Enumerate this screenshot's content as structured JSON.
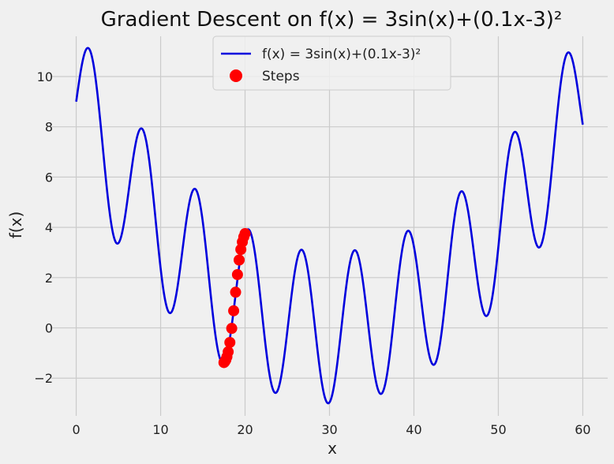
{
  "chart_data": {
    "type": "line",
    "title": "Gradient Descent on f(x) = 3sin(x)+(0.1x-3)²",
    "xlabel": "x",
    "ylabel": "f(x)",
    "xlim": [
      -2.95,
      62.95
    ],
    "ylim": [
      -3.5,
      11.6
    ],
    "xticks": [
      0,
      10,
      20,
      30,
      40,
      50,
      60
    ],
    "yticks": [
      -2,
      0,
      2,
      4,
      6,
      8,
      10
    ],
    "xtick_labels": [
      "0",
      "10",
      "20",
      "30",
      "40",
      "50",
      "60"
    ],
    "ytick_labels": [
      "−2",
      "0",
      "2",
      "4",
      "6",
      "8",
      "10"
    ],
    "grid": true,
    "legend_position": "upper-center",
    "series": [
      {
        "name": "f(x) = 3sin(x)+(0.1x-3)²",
        "type": "line",
        "color": "#0000dd",
        "function": "3sin(x)+(0.1x-3)^2",
        "x_range": [
          0,
          60
        ]
      },
      {
        "name": "Steps",
        "type": "scatter",
        "color": "#ff0000",
        "x": [
          20.0,
          19.85,
          19.68,
          19.5,
          19.3,
          19.1,
          18.88,
          18.65,
          18.42,
          18.2,
          18.0,
          17.85,
          17.72,
          17.62,
          17.55,
          17.5
        ],
        "y": [
          3.75,
          3.62,
          3.42,
          3.12,
          2.7,
          2.12,
          1.42,
          0.68,
          -0.02,
          -0.58,
          -0.95,
          -1.15,
          -1.27,
          -1.33,
          -1.36,
          -1.38
        ]
      }
    ]
  }
}
